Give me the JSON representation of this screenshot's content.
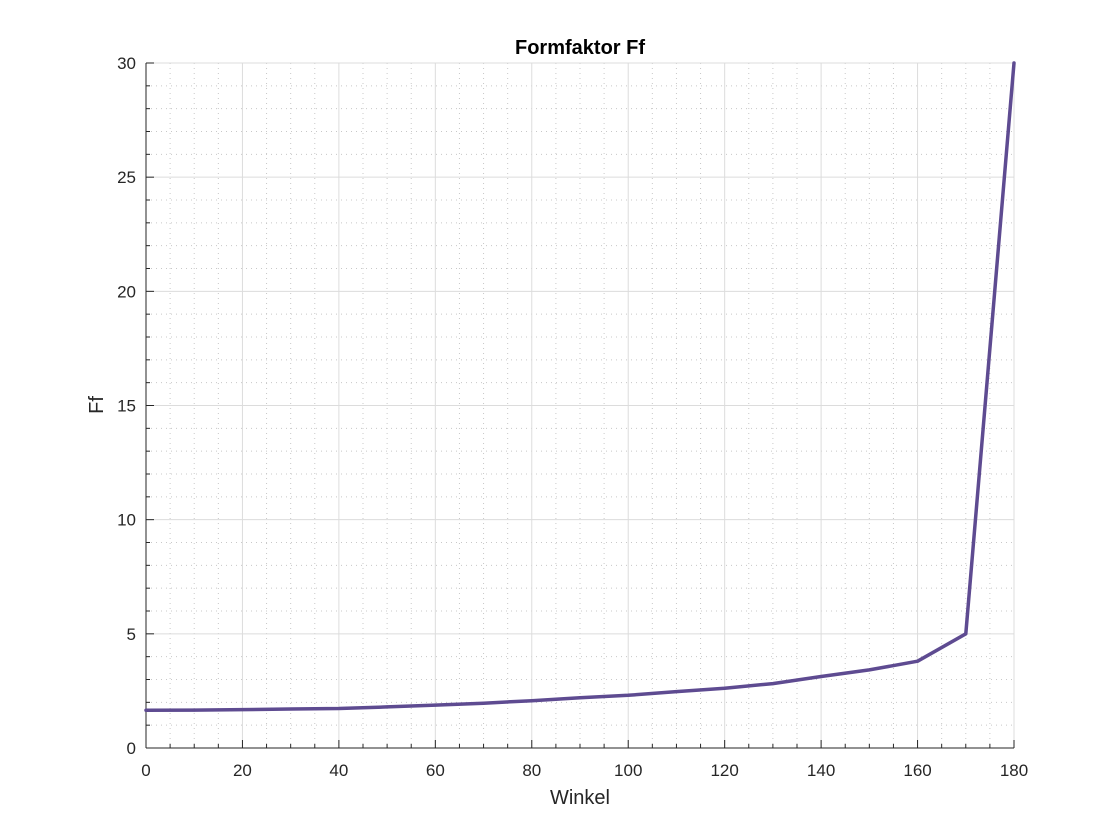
{
  "chart_data": {
    "type": "line",
    "title": "Formfaktor Ff",
    "xlabel": "Winkel",
    "ylabel": "Ff",
    "xlim": [
      0,
      180
    ],
    "ylim": [
      0,
      30
    ],
    "xticks": [
      0,
      20,
      40,
      60,
      80,
      100,
      120,
      140,
      160,
      180
    ],
    "yticks": [
      0,
      5,
      10,
      15,
      20,
      25,
      30
    ],
    "xtick_labels": [
      "0",
      "20",
      "40",
      "60",
      "80",
      "100",
      "120",
      "140",
      "160",
      "180"
    ],
    "ytick_labels": [
      "0",
      "5",
      "10",
      "15",
      "20",
      "25",
      "30"
    ],
    "grid": true,
    "minor_grid": true,
    "series": [
      {
        "color": "#5e4b91",
        "x": [
          0,
          10,
          20,
          30,
          40,
          50,
          60,
          70,
          80,
          90,
          100,
          110,
          120,
          130,
          140,
          150,
          160,
          170,
          180
        ],
        "y": [
          1.65,
          1.66,
          1.68,
          1.71,
          1.73,
          1.8,
          1.88,
          1.96,
          2.07,
          2.2,
          2.31,
          2.47,
          2.62,
          2.82,
          3.13,
          3.42,
          3.8,
          5.0,
          30.0
        ]
      }
    ]
  }
}
